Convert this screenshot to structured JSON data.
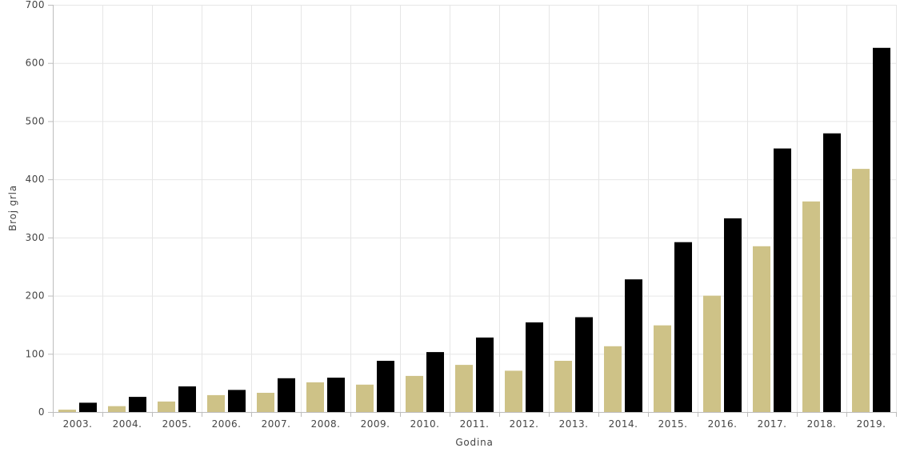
{
  "chart_data": {
    "type": "bar",
    "xlabel": "Godina",
    "ylabel": "Broj grla",
    "ylim": [
      0,
      700
    ],
    "yticks": [
      0,
      100,
      200,
      300,
      400,
      500,
      600,
      700
    ],
    "grid": true,
    "categories": [
      "2003.",
      "2004.",
      "2005.",
      "2006.",
      "2007.",
      "2008.",
      "2009.",
      "2010.",
      "2011.",
      "2012.",
      "2013.",
      "2014.",
      "2015.",
      "2016.",
      "2017.",
      "2018.",
      "2019."
    ],
    "series": [
      {
        "color": "#cec287",
        "values": [
          4,
          10,
          18,
          29,
          33,
          51,
          47,
          62,
          81,
          71,
          88,
          113,
          149,
          200,
          285,
          362,
          418
        ]
      },
      {
        "color": "#000000",
        "values": [
          16,
          26,
          44,
          38,
          58,
          59,
          88,
          103,
          128,
          154,
          163,
          228,
          292,
          333,
          453,
          479,
          626
        ]
      }
    ]
  }
}
